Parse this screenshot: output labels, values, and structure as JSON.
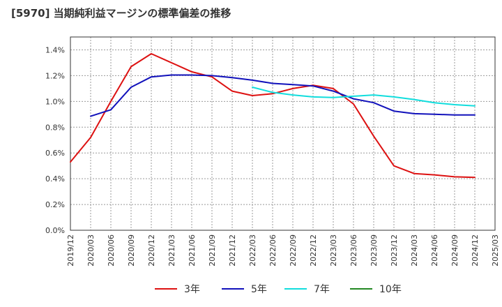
{
  "chart_data": {
    "type": "line",
    "title": "[5970]  当期純利益マージンの標準偏差の推移",
    "xlabel": "",
    "ylabel": "",
    "x": [
      "2019/12",
      "2020/03",
      "2020/06",
      "2020/09",
      "2020/12",
      "2021/03",
      "2021/06",
      "2021/09",
      "2021/12",
      "2022/03",
      "2022/06",
      "2022/09",
      "2022/12",
      "2023/03",
      "2023/06",
      "2023/09",
      "2023/12",
      "2024/03",
      "2024/06",
      "2024/09",
      "2024/12",
      "2025/03"
    ],
    "x_tick_labels": [
      "2019/12",
      "2020/03",
      "2020/06",
      "2020/09",
      "2020/12",
      "2021/03",
      "2021/06",
      "2021/09",
      "2021/12",
      "2022/03",
      "2022/06",
      "2022/09",
      "2022/12",
      "2023/03",
      "2023/06",
      "2023/09",
      "2023/12",
      "2024/03",
      "2024/06",
      "2024/09",
      "2024/12",
      "2025/03"
    ],
    "y_tick_labels": [
      "0.0%",
      "0.2%",
      "0.4%",
      "0.6%",
      "0.8%",
      "1.0%",
      "1.2%",
      "1.4%"
    ],
    "ylim": [
      0,
      1.5
    ],
    "grid": true,
    "legend_position": "bottom",
    "series": [
      {
        "name": "3年",
        "color": "#dd1111",
        "values": [
          0.53,
          0.72,
          1.0,
          1.27,
          1.37,
          1.3,
          1.23,
          1.19,
          1.08,
          1.045,
          1.06,
          1.1,
          1.125,
          1.1,
          0.98,
          0.73,
          0.5,
          0.44,
          0.43,
          0.415,
          0.41,
          null
        ]
      },
      {
        "name": "5年",
        "color": "#1111bb",
        "values": [
          null,
          0.885,
          0.935,
          1.11,
          1.19,
          1.205,
          1.205,
          1.2,
          1.185,
          1.165,
          1.14,
          1.13,
          1.12,
          1.08,
          1.02,
          0.99,
          0.925,
          0.905,
          0.9,
          0.895,
          0.895,
          null
        ]
      },
      {
        "name": "7年",
        "color": "#11dddd",
        "values": [
          null,
          null,
          null,
          null,
          null,
          null,
          null,
          null,
          null,
          1.11,
          1.07,
          1.05,
          1.035,
          1.03,
          1.04,
          1.05,
          1.035,
          1.015,
          0.99,
          0.975,
          0.965,
          null
        ]
      },
      {
        "name": "10年",
        "color": "#228822",
        "values": [
          null,
          null,
          null,
          null,
          null,
          null,
          null,
          null,
          null,
          null,
          null,
          null,
          null,
          null,
          null,
          null,
          null,
          null,
          null,
          null,
          null,
          null
        ]
      }
    ]
  }
}
